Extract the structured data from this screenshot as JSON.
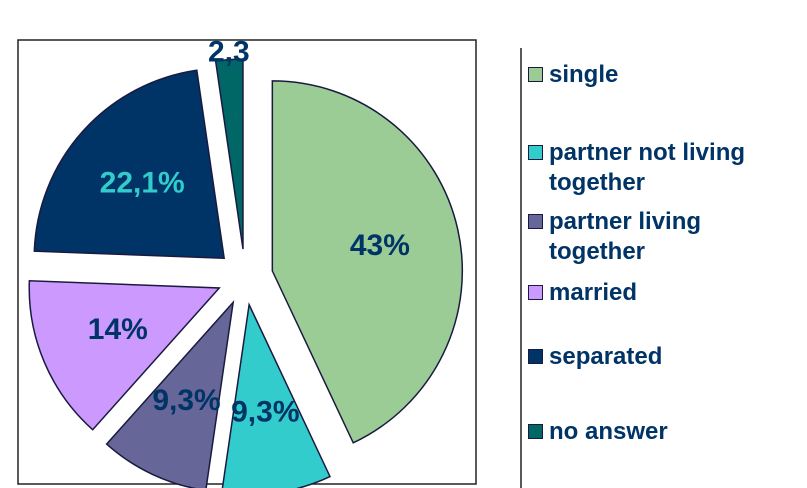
{
  "chart_data": {
    "type": "pie",
    "categories": [
      "single",
      "partner not living together",
      "partner living together",
      "married",
      "separated",
      "no answer"
    ],
    "values": [
      43,
      9.3,
      9.3,
      14,
      22.1,
      2.3
    ],
    "value_labels": [
      "43%",
      "9,3%",
      "9,3%",
      "14%",
      "22,1%",
      "2,3"
    ],
    "colors": [
      "#9ccc96",
      "#33cccc",
      "#666699",
      "#cc99ff",
      "#003366",
      "#006666"
    ],
    "legend": "right"
  }
}
